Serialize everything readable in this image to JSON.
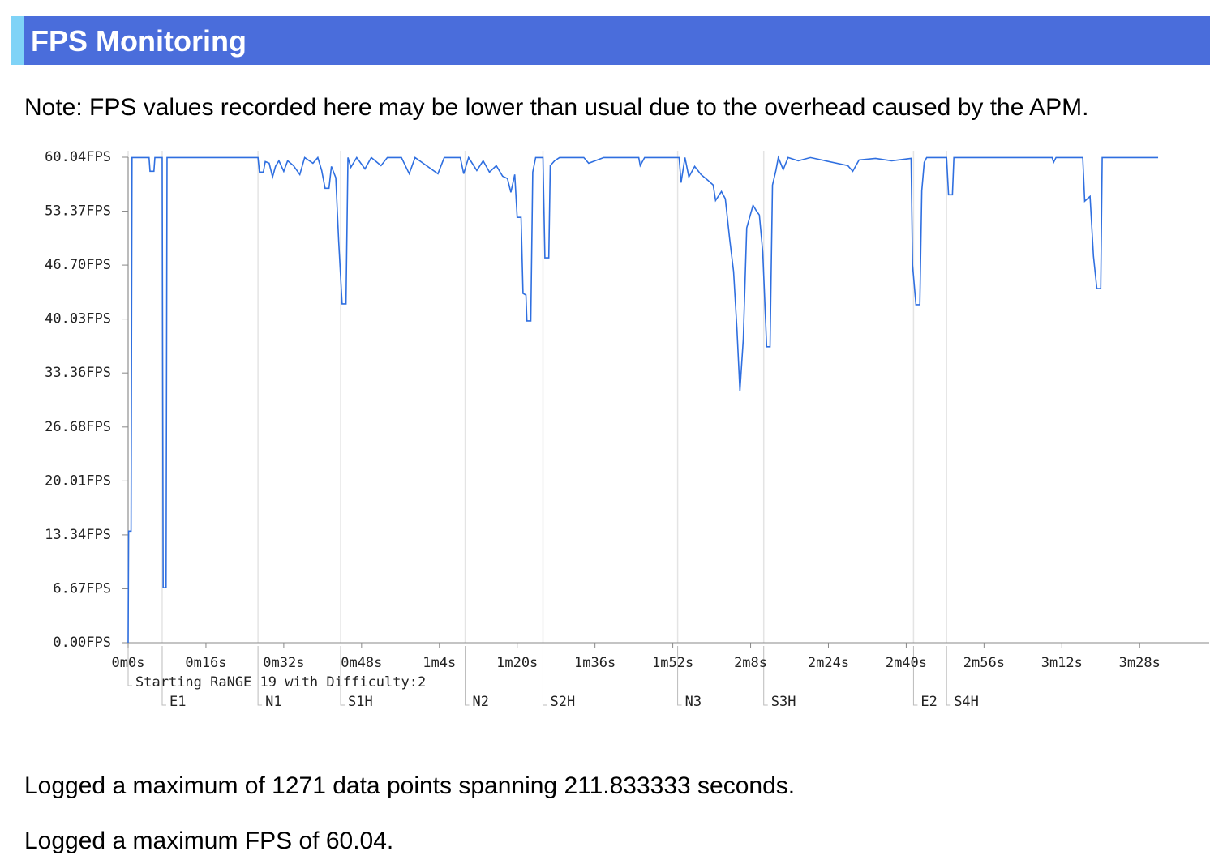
{
  "header": {
    "title": "FPS Monitoring"
  },
  "note": "Note: FPS values recorded here may be lower than usual due to the overhead caused by the APM.",
  "chart_data": {
    "type": "line",
    "xlim": [
      0,
      222.3
    ],
    "ylim": [
      0,
      60.04
    ],
    "yticks": [
      {
        "value": 0,
        "label": "0.00FPS"
      },
      {
        "value": 6.67,
        "label": "6.67FPS"
      },
      {
        "value": 13.34,
        "label": "13.34FPS"
      },
      {
        "value": 20.01,
        "label": "20.01FPS"
      },
      {
        "value": 26.68,
        "label": "26.68FPS"
      },
      {
        "value": 33.36,
        "label": "33.36FPS"
      },
      {
        "value": 40.03,
        "label": "40.03FPS"
      },
      {
        "value": 46.7,
        "label": "46.70FPS"
      },
      {
        "value": 53.37,
        "label": "53.37FPS"
      },
      {
        "value": 60.04,
        "label": "60.04FPS"
      }
    ],
    "xticks": [
      {
        "value": 0,
        "label": "0m0s"
      },
      {
        "value": 16,
        "label": "0m16s"
      },
      {
        "value": 32,
        "label": "0m32s"
      },
      {
        "value": 48,
        "label": "0m48s"
      },
      {
        "value": 64,
        "label": "1m4s"
      },
      {
        "value": 80,
        "label": "1m20s"
      },
      {
        "value": 96,
        "label": "1m36s"
      },
      {
        "value": 112,
        "label": "1m52s"
      },
      {
        "value": 128,
        "label": "2m8s"
      },
      {
        "value": 144,
        "label": "2m24s"
      },
      {
        "value": 160,
        "label": "2m40s"
      },
      {
        "value": 176,
        "label": "2m56s"
      },
      {
        "value": 192,
        "label": "3m12s"
      },
      {
        "value": 208,
        "label": "3m28s"
      }
    ],
    "events": [
      {
        "label": "Starting RaNGE 19 with Difficulty:2",
        "t": 0
      },
      {
        "label": "E1",
        "t": 7.0
      },
      {
        "label": "N1",
        "t": 26.7
      },
      {
        "label": "S1H",
        "t": 43.7
      },
      {
        "label": "N2",
        "t": 69.3
      },
      {
        "label": "S2H",
        "t": 85.3
      },
      {
        "label": "N3",
        "t": 113.0
      },
      {
        "label": "S3H",
        "t": 130.7
      },
      {
        "label": "E2",
        "t": 161.5
      },
      {
        "label": "S4H",
        "t": 168.3
      }
    ],
    "x": [
      0,
      0.1,
      0.6,
      0.8,
      4.3,
      4.5,
      5.3,
      5.5,
      7.0,
      7.2,
      7.8,
      8.0,
      26.7,
      27.0,
      27.8,
      28.2,
      29.0,
      29.7,
      30.3,
      31.0,
      32.0,
      32.8,
      34.0,
      35.3,
      36.3,
      38.0,
      39.0,
      39.8,
      40.5,
      41.3,
      41.8,
      42.7,
      43.3,
      44.0,
      44.8,
      45.2,
      45.8,
      47.0,
      48.7,
      50.0,
      52.0,
      53.3,
      56.2,
      57.8,
      59.0,
      63.7,
      65.0,
      68.3,
      69.0,
      70.0,
      71.7,
      73.0,
      74.3,
      75.7,
      77.0,
      78.0,
      78.7,
      79.5,
      80.0,
      80.8,
      81.2,
      81.8,
      82.0,
      82.8,
      83.2,
      83.8,
      85.3,
      85.7,
      86.5,
      86.8,
      87.7,
      88.7,
      93.7,
      94.7,
      97.8,
      105.0,
      105.3,
      106.2,
      113.3,
      113.7,
      114.5,
      115.3,
      116.5,
      117.8,
      119.2,
      120.3,
      120.8,
      122.0,
      122.8,
      123.7,
      124.5,
      125.2,
      125.8,
      126.5,
      127.2,
      127.8,
      128.5,
      129.2,
      129.8,
      130.5,
      131.3,
      132.0,
      132.5,
      133.2,
      133.7,
      134.7,
      135.7,
      137.8,
      140.3,
      148.0,
      149.0,
      150.3,
      153.7,
      157.0,
      161.0,
      161.3,
      162.0,
      162.8,
      163.2,
      163.7,
      164.2,
      168.3,
      168.7,
      169.5,
      169.8,
      190.0,
      190.3,
      190.8,
      196.3,
      196.7,
      197.8,
      198.5,
      199.2,
      200.0,
      200.3,
      211.8
    ],
    "series": [
      {
        "color": "#2f6fe0",
        "values": [
          0,
          13.8,
          13.8,
          60.0,
          60.0,
          58.3,
          58.3,
          60.0,
          60.0,
          6.8,
          6.8,
          60.0,
          60.0,
          58.2,
          58.2,
          59.5,
          59.3,
          57.6,
          58.9,
          59.6,
          58.3,
          59.6,
          59.0,
          57.9,
          60.0,
          59.3,
          60.0,
          58.4,
          56.2,
          56.2,
          58.9,
          57.5,
          49.6,
          41.9,
          41.9,
          60.0,
          58.8,
          60.0,
          58.6,
          60.0,
          59.0,
          60.0,
          60.0,
          58.0,
          60.0,
          58.0,
          60.0,
          60.0,
          58.0,
          60.0,
          58.4,
          59.6,
          58.2,
          59.0,
          57.7,
          57.4,
          55.7,
          57.9,
          52.6,
          52.6,
          43.2,
          43.0,
          39.8,
          39.8,
          58.2,
          60.0,
          60.0,
          47.6,
          47.6,
          59.0,
          59.6,
          60.0,
          60.0,
          59.3,
          60.0,
          60.0,
          59.0,
          60.0,
          60.0,
          56.9,
          60.0,
          57.6,
          58.9,
          57.9,
          57.2,
          56.6,
          54.7,
          55.8,
          54.9,
          49.9,
          45.9,
          38.7,
          31.1,
          37.6,
          51.3,
          52.6,
          54.1,
          53.4,
          52.9,
          48.3,
          36.6,
          36.6,
          56.6,
          58.4,
          60.0,
          58.5,
          60.0,
          59.6,
          60.0,
          59.0,
          58.3,
          59.7,
          59.9,
          59.6,
          59.9,
          46.7,
          41.8,
          41.8,
          55.9,
          59.4,
          60.0,
          60.0,
          55.4,
          55.4,
          60.0,
          60.0,
          59.4,
          60.0,
          60.0,
          54.6,
          55.2,
          47.8,
          43.8,
          43.8,
          60.0,
          60.0
        ]
      }
    ]
  },
  "footer": [
    "Logged a maximum of 1271 data points spanning 211.833333 seconds.",
    "Logged a maximum FPS of 60.04."
  ]
}
